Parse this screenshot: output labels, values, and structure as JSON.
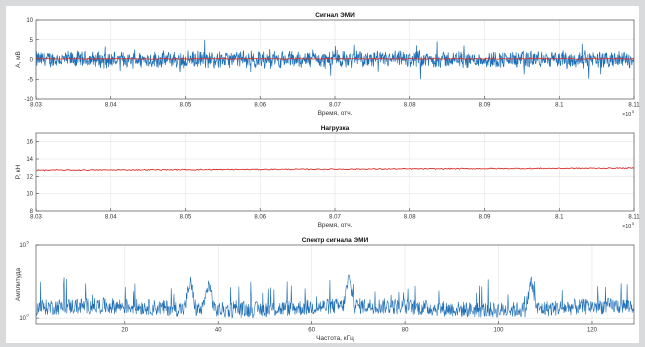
{
  "window": {
    "record_indicator_color": "#c0141c",
    "background_color": "#dfe0e2"
  },
  "chart_data": [
    {
      "type": "line",
      "title": "Сигнал ЭМИ",
      "xlabel": "Время, отч.",
      "ylabel": "A, мВ",
      "x_exponent_label": "×10",
      "x_exponent_value": "5",
      "xlim": [
        803000,
        811000
      ],
      "ylim": [
        -10,
        10
      ],
      "xtick_labels": [
        "8.03",
        "8.04",
        "8.05",
        "8.06",
        "8.07",
        "8.08",
        "8.09",
        "8.1",
        "8.11"
      ],
      "ytick_labels": [
        "-10",
        "-5",
        "0",
        "5",
        "10"
      ],
      "series": [
        {
          "color": "#1f6fb5",
          "style": "noise",
          "mean": 0,
          "amplitude": 2.5,
          "spikes": [
            3,
            4,
            -5,
            5,
            -4
          ]
        },
        {
          "color": "#d9302c",
          "style": "flat",
          "mean": 0.2
        }
      ],
      "grid": true
    },
    {
      "type": "line",
      "title": "Нагрузка",
      "xlabel": "Время, отч.",
      "ylabel": "P, кН",
      "x_exponent_label": "×10",
      "x_exponent_value": "5",
      "xlim": [
        803000,
        811000
      ],
      "ylim": [
        8,
        17
      ],
      "xtick_labels": [
        "8.03",
        "8.04",
        "8.05",
        "8.06",
        "8.07",
        "8.08",
        "8.09",
        "8.1",
        "8.11"
      ],
      "ytick_labels": [
        "8",
        "10",
        "12",
        "14",
        "16"
      ],
      "series": [
        {
          "color": "#d9302c",
          "style": "trend",
          "start": 12.7,
          "end": 12.95
        }
      ],
      "grid": true
    },
    {
      "type": "line",
      "title": "Спектр сигнала ЭМИ",
      "xlabel": "Частота, кГц",
      "ylabel": "Амплитуда",
      "xlim": [
        1,
        129
      ],
      "log_y": true,
      "ylim_log10": [
        -0.4,
        5
      ],
      "xtick_labels": [
        "20",
        "40",
        "60",
        "80",
        "100",
        "120"
      ],
      "xtick_values": [
        20,
        40,
        60,
        80,
        100,
        120
      ],
      "ytick_exponents": [
        "5",
        "0"
      ],
      "series": [
        {
          "color": "#1f6fb5",
          "style": "spectrum",
          "baseline_log10": 0.7,
          "peaks_khz": [
            34,
            38,
            68,
            107
          ]
        }
      ],
      "grid": true
    }
  ]
}
